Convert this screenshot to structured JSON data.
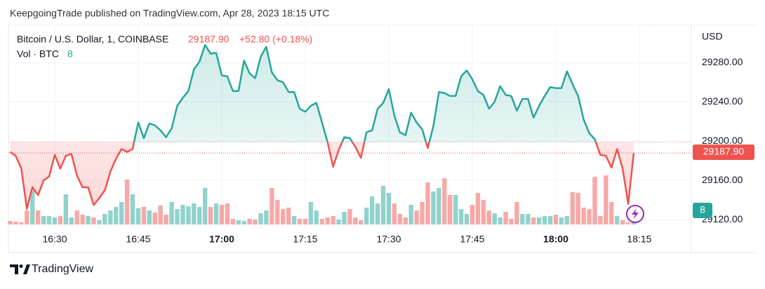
{
  "header": "KeepgoingTrade published on TradingView.com, Apr 28, 2023 18:15 UTC",
  "footer": "TradingView",
  "chart_data": {
    "type": "line",
    "title": "Bitcoin / U.S. Dollar, 1, COINBASE",
    "currency": "USD",
    "last_value_label": "29187.90",
    "change": "+52.80 (+0.18%)",
    "baseline": 29199,
    "up_color": "#26a69a",
    "down_color": "#ef5350",
    "grid": true,
    "x": [
      "16:22",
      "16:23",
      "16:24",
      "16:25",
      "16:26",
      "16:27",
      "16:28",
      "16:29",
      "16:30",
      "16:31",
      "16:32",
      "16:33",
      "16:34",
      "16:35",
      "16:36",
      "16:37",
      "16:38",
      "16:39",
      "16:40",
      "16:41",
      "16:42",
      "16:43",
      "16:44",
      "16:45",
      "16:46",
      "16:47",
      "16:48",
      "16:49",
      "16:50",
      "16:51",
      "16:52",
      "16:53",
      "16:54",
      "16:55",
      "16:56",
      "16:57",
      "16:58",
      "16:59",
      "17:00",
      "17:01",
      "17:02",
      "17:03",
      "17:04",
      "17:05",
      "17:06",
      "17:07",
      "17:08",
      "17:09",
      "17:10",
      "17:11",
      "17:12",
      "17:13",
      "17:14",
      "17:15",
      "17:16",
      "17:17",
      "17:18",
      "17:19",
      "17:20",
      "17:21",
      "17:22",
      "17:23",
      "17:24",
      "17:25",
      "17:26",
      "17:27",
      "17:28",
      "17:29",
      "17:30",
      "17:31",
      "17:32",
      "17:33",
      "17:34",
      "17:35",
      "17:36",
      "17:37",
      "17:38",
      "17:39",
      "17:40",
      "17:41",
      "17:42",
      "17:43",
      "17:44",
      "17:45",
      "17:46",
      "17:47",
      "17:48",
      "17:49",
      "17:50",
      "17:51",
      "17:52",
      "17:53",
      "17:54",
      "17:55",
      "17:56",
      "17:57",
      "17:58",
      "17:59",
      "18:00",
      "18:01",
      "18:02",
      "18:03",
      "18:04",
      "18:05",
      "18:06",
      "18:07",
      "18:08",
      "18:09",
      "18:10",
      "18:11",
      "18:12",
      "18:13",
      "18:14"
    ],
    "values": [
      29189,
      29185,
      29172,
      29131,
      29153,
      29145,
      29160,
      29164,
      29186,
      29172,
      29185,
      29187,
      29165,
      29153,
      29153,
      29135,
      29142,
      29150,
      29169,
      29182,
      29192,
      29189,
      29192,
      29219,
      29203,
      29218,
      29216,
      29211,
      29204,
      29213,
      29236,
      29244,
      29251,
      29273,
      29281,
      29298,
      29289,
      29290,
      29267,
      29266,
      29251,
      29251,
      29282,
      29269,
      29264,
      29286,
      29296,
      29270,
      29262,
      29260,
      29250,
      29250,
      29233,
      29230,
      29236,
      29239,
      29219,
      29199,
      29174,
      29191,
      29204,
      29203,
      29194,
      29183,
      29209,
      29211,
      29233,
      29239,
      29253,
      29226,
      29209,
      29206,
      29229,
      29219,
      29212,
      29193,
      29215,
      29250,
      29249,
      29246,
      29246,
      29266,
      29272,
      29263,
      29251,
      29247,
      29233,
      29240,
      29256,
      29247,
      29246,
      29231,
      29243,
      29243,
      29224,
      29236,
      29246,
      29255,
      29254,
      29254,
      29271,
      29258,
      29246,
      29222,
      29208,
      29202,
      29186,
      29185,
      29173,
      29192,
      29172,
      29136,
      29187.9
    ],
    "volume": {
      "name": "Vol · BTC",
      "values": [
        10,
        8,
        6,
        40,
        96,
        40,
        24,
        24,
        20,
        24,
        86,
        20,
        40,
        28,
        24,
        20,
        12,
        30,
        40,
        50,
        64,
        128,
        86,
        46,
        50,
        40,
        34,
        54,
        28,
        64,
        44,
        56,
        52,
        60,
        50,
        104,
        50,
        60,
        56,
        60,
        16,
        12,
        10,
        16,
        14,
        32,
        40,
        104,
        70,
        44,
        48,
        24,
        16,
        16,
        64,
        40,
        16,
        20,
        24,
        14,
        36,
        44,
        20,
        12,
        48,
        80,
        60,
        110,
        90,
        60,
        30,
        20,
        56,
        40,
        64,
        120,
        94,
        104,
        132,
        84,
        84,
        44,
        30,
        56,
        90,
        70,
        40,
        32,
        20,
        36,
        16,
        64,
        30,
        30,
        20,
        20,
        24,
        24,
        28,
        20,
        24,
        92,
        90,
        48,
        44,
        136,
        24,
        140,
        64,
        24,
        12,
        6,
        8
      ]
    },
    "xlim": [
      "16:21:41",
      "18:24:20"
    ],
    "xticks": [
      "16:30",
      "16:45",
      "17:00",
      "17:15",
      "17:30",
      "17:45",
      "18:00",
      "18:15"
    ],
    "ylim": [
      29108,
      29318
    ],
    "yticks": [
      {
        "value": 29120,
        "label": "29120.00"
      },
      {
        "value": 29160,
        "label": "29160.00"
      },
      {
        "value": 29200,
        "label": "29200.00"
      },
      {
        "value": 29240,
        "label": "29240.00"
      },
      {
        "value": 29280,
        "label": "29280.00"
      }
    ]
  }
}
